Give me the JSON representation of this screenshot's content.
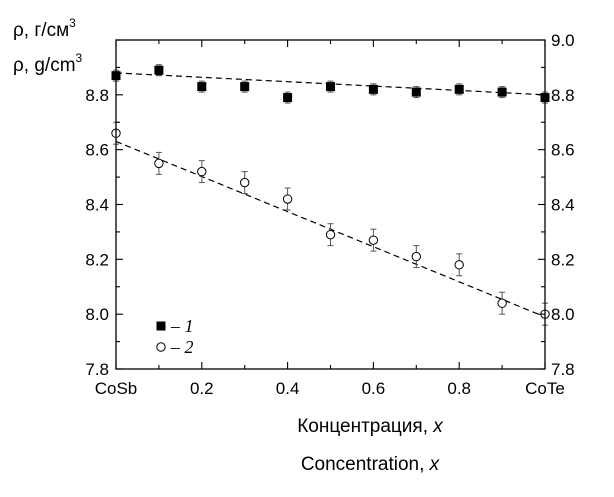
{
  "chart_data": {
    "type": "scatter",
    "title": "",
    "y_label_ru": "ρ, г/см",
    "y_label_en": "ρ, g/cm",
    "y_label_exp": "3",
    "x_label_ru": "Концентрация, ",
    "x_label_en": "Concentration, ",
    "x_var": "x",
    "xlim": [
      0,
      1
    ],
    "ylim": [
      7.8,
      9.0
    ],
    "x_ticks": [
      0,
      0.2,
      0.4,
      0.6,
      0.8,
      1.0
    ],
    "x_tick_labels": [
      "CoSb",
      "0.2",
      "0.4",
      "0.6",
      "0.8",
      "CoTe"
    ],
    "y_ticks": [
      7.8,
      8.0,
      8.2,
      8.4,
      8.6,
      8.8,
      9.0
    ],
    "y_tick_labels_left": [
      "7.8",
      "8.0",
      "8.2",
      "8.4",
      "8.6",
      "8.8",
      ""
    ],
    "y_tick_labels_right": [
      "7.8",
      "8.0",
      "8.2",
      "8.4",
      "8.6",
      "8.8",
      "9.0"
    ],
    "grid": false,
    "legend_position": "bottom-left",
    "series": [
      {
        "name": "– 1",
        "marker": "square-filled",
        "x": [
          0,
          0.1,
          0.2,
          0.3,
          0.4,
          0.5,
          0.6,
          0.7,
          0.8,
          0.9,
          1.0
        ],
        "y": [
          8.87,
          8.89,
          8.83,
          8.83,
          8.79,
          8.83,
          8.82,
          8.81,
          8.82,
          8.81,
          8.79
        ],
        "err": [
          0.02,
          0.02,
          0.02,
          0.02,
          0.02,
          0.02,
          0.02,
          0.02,
          0.02,
          0.02,
          0.02
        ],
        "fit": [
          [
            0,
            8.88
          ],
          [
            1.0,
            8.8
          ]
        ]
      },
      {
        "name": "– 2",
        "marker": "circle-open",
        "x": [
          0,
          0.1,
          0.2,
          0.3,
          0.4,
          0.5,
          0.6,
          0.7,
          0.8,
          0.9,
          1.0
        ],
        "y": [
          8.66,
          8.55,
          8.52,
          8.48,
          8.42,
          8.29,
          8.27,
          8.21,
          8.18,
          8.04,
          8.0
        ],
        "err": [
          0.04,
          0.04,
          0.04,
          0.04,
          0.04,
          0.04,
          0.04,
          0.04,
          0.04,
          0.04,
          0.04
        ],
        "fit": [
          [
            0,
            8.63
          ],
          [
            1.0,
            7.99
          ]
        ]
      }
    ]
  }
}
